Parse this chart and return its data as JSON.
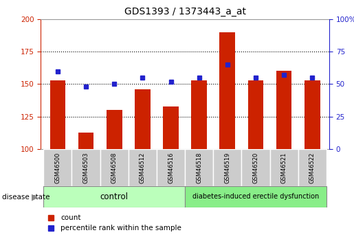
{
  "title": "GDS1393 / 1373443_a_at",
  "samples": [
    "GSM46500",
    "GSM46503",
    "GSM46508",
    "GSM46512",
    "GSM46516",
    "GSM46518",
    "GSM46519",
    "GSM46520",
    "GSM46521",
    "GSM46522"
  ],
  "counts": [
    153,
    113,
    130,
    146,
    133,
    153,
    190,
    153,
    160,
    153
  ],
  "percentiles": [
    60,
    48,
    50,
    55,
    52,
    55,
    65,
    55,
    57,
    55
  ],
  "ylim_left": [
    100,
    200
  ],
  "ylim_right": [
    0,
    100
  ],
  "yticks_left": [
    100,
    125,
    150,
    175,
    200
  ],
  "yticks_right": [
    0,
    25,
    50,
    75,
    100
  ],
  "bar_color": "#cc2200",
  "dot_color": "#2222cc",
  "bar_bottom": 100,
  "control_label": "control",
  "disease_label": "diabetes-induced erectile dysfunction",
  "disease_state_label": "disease state",
  "legend_count": "count",
  "legend_percentile": "percentile rank within the sample",
  "control_color": "#bbffbb",
  "disease_color": "#88ee88",
  "sample_bg_color": "#cccccc",
  "title_fontsize": 10,
  "tick_fontsize": 7.5,
  "label_fontsize": 7,
  "bar_width": 0.55
}
